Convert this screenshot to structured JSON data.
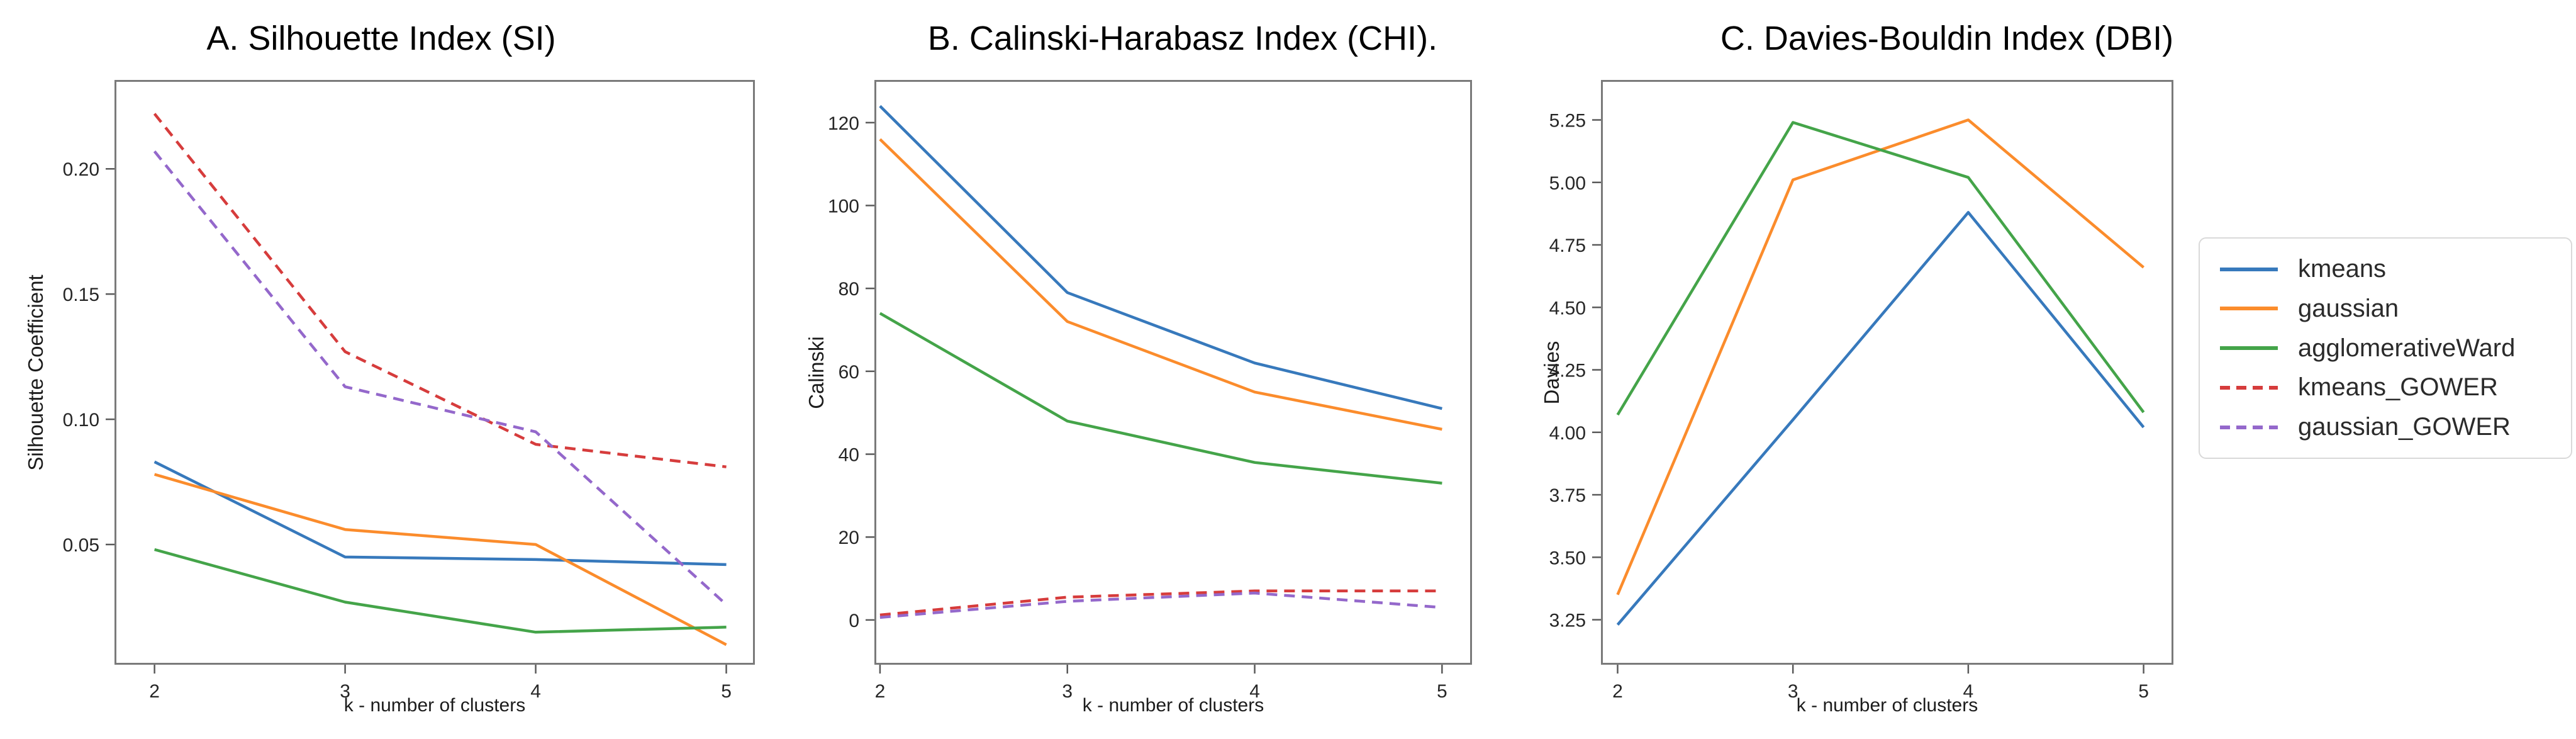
{
  "legend": {
    "items": [
      {
        "label": "kmeans",
        "color": "#3779bc",
        "dash": false
      },
      {
        "label": "gaussian",
        "color": "#fb8c2c",
        "dash": false
      },
      {
        "label": "agglomerativeWard",
        "color": "#44a449",
        "dash": false
      },
      {
        "label": "kmeans_GOWER",
        "color": "#d63c3c",
        "dash": true
      },
      {
        "label": "gaussian_GOWER",
        "color": "#9468cb",
        "dash": true
      }
    ]
  },
  "chart_data": [
    {
      "type": "line",
      "title": "A. Silhouette Index (SI)",
      "xlabel": "k - number of clusters",
      "ylabel": "Silhouette Coefficient",
      "x": [
        2,
        3,
        4,
        5
      ],
      "xticks": [
        2,
        3,
        4,
        5
      ],
      "xtick_labels": [
        "2",
        "3",
        "4",
        "5"
      ],
      "yticks": [
        0.05,
        0.1,
        0.15,
        0.2
      ],
      "ytick_labels": [
        "0.05",
        "0.10",
        "0.15",
        "0.20"
      ],
      "xlim": [
        1.79,
        5.15
      ],
      "ylim": [
        0.002,
        0.2355
      ],
      "grid": false,
      "legend_position": "outside-right",
      "series": [
        {
          "name": "kmeans",
          "values": [
            0.083,
            0.045,
            0.044,
            0.042
          ]
        },
        {
          "name": "gaussian",
          "values": [
            0.078,
            0.056,
            0.05,
            0.01
          ]
        },
        {
          "name": "agglomerativeWard",
          "values": [
            0.048,
            0.027,
            0.015,
            0.017
          ]
        },
        {
          "name": "kmeans_GOWER",
          "values": [
            0.222,
            0.127,
            0.09,
            0.081
          ]
        },
        {
          "name": "gaussian_GOWER",
          "values": [
            0.207,
            0.113,
            0.095,
            0.026
          ]
        }
      ]
    },
    {
      "type": "line",
      "title": "B. Calinski-Harabasz Index (CHI).",
      "xlabel": "k - number of clusters",
      "ylabel": "Calinski",
      "x": [
        2,
        3,
        4,
        5
      ],
      "xticks": [
        2,
        3,
        4,
        5
      ],
      "xtick_labels": [
        "2",
        "3",
        "4",
        "5"
      ],
      "yticks": [
        0,
        20,
        40,
        60,
        80,
        100,
        120
      ],
      "ytick_labels": [
        "0",
        "20",
        "40",
        "60",
        "80",
        "100",
        "120"
      ],
      "xlim": [
        1.97,
        5.16
      ],
      "ylim": [
        -10.8,
        130.3
      ],
      "grid": false,
      "legend_position": "outside-right",
      "series": [
        {
          "name": "kmeans",
          "values": [
            124,
            79,
            62,
            51
          ]
        },
        {
          "name": "gaussian",
          "values": [
            116,
            72,
            55,
            46
          ]
        },
        {
          "name": "agglomerativeWard",
          "values": [
            74,
            48,
            38,
            33
          ]
        },
        {
          "name": "kmeans_GOWER",
          "values": [
            1.2,
            5.5,
            7,
            7
          ]
        },
        {
          "name": "gaussian_GOWER",
          "values": [
            0.6,
            4.5,
            6.5,
            3
          ]
        }
      ]
    },
    {
      "type": "line",
      "title": "C. Davies-Bouldin Index (DBI)",
      "xlabel": "k - number of clusters",
      "ylabel": "Davies",
      "x": [
        2,
        3,
        4,
        5
      ],
      "xticks": [
        2,
        3,
        4,
        5
      ],
      "xtick_labels": [
        "2",
        "3",
        "4",
        "5"
      ],
      "yticks": [
        3.25,
        3.5,
        3.75,
        4.0,
        4.25,
        4.5,
        4.75,
        5.0,
        5.25
      ],
      "ytick_labels": [
        "3.25",
        "3.50",
        "3.75",
        "4.00",
        "4.25",
        "4.50",
        "4.75",
        "5.00",
        "5.25"
      ],
      "xlim": [
        1.905,
        5.17
      ],
      "ylim": [
        3.07,
        5.41
      ],
      "grid": false,
      "legend_position": "outside-right",
      "series": [
        {
          "name": "kmeans",
          "values": [
            3.23,
            4.05,
            4.88,
            4.02
          ]
        },
        {
          "name": "gaussian",
          "values": [
            3.35,
            5.01,
            5.25,
            4.66
          ]
        },
        {
          "name": "agglomerativeWard",
          "values": [
            4.07,
            5.24,
            5.02,
            4.08
          ]
        }
      ]
    }
  ]
}
